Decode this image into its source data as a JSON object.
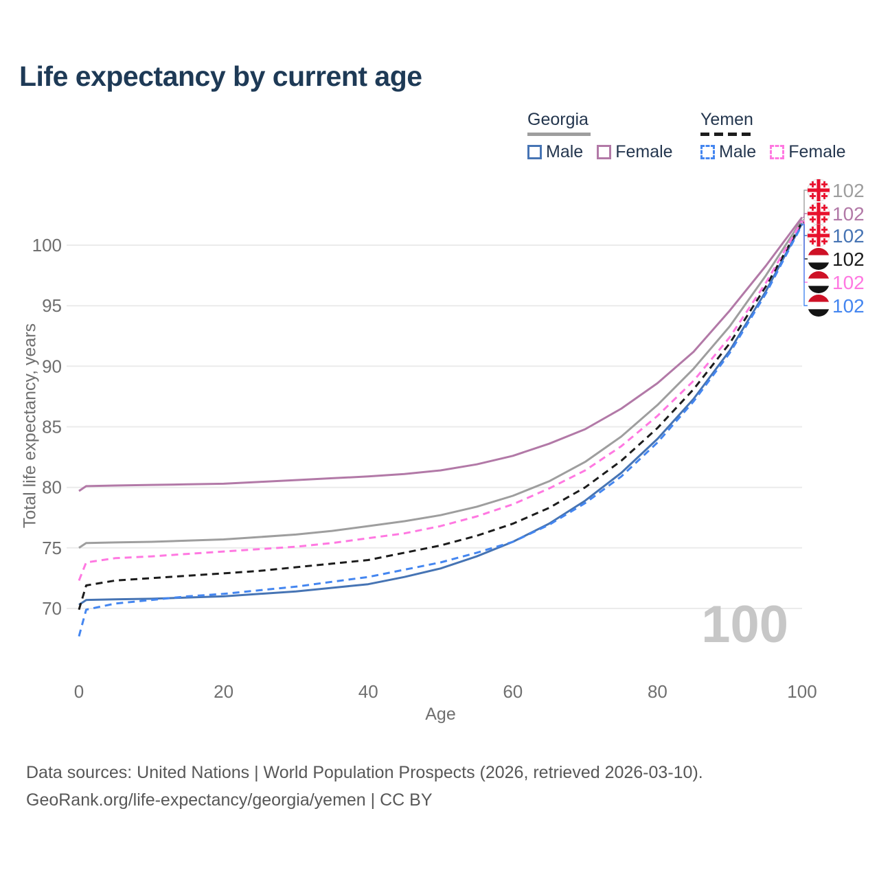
{
  "title": "Life expectancy by current age",
  "watermark": "100",
  "footer": {
    "line1": "Data sources: United Nations | World Population Prospects (2026, retrieved 2026-03-10).",
    "line2": "GeoRank.org/life-expectancy/georgia/yemen | CC BY"
  },
  "legend": {
    "groups": [
      {
        "country": "Georgia",
        "style": "solid",
        "color": "#9e9e9e",
        "items": [
          {
            "label": "Male",
            "color": "#4674b4",
            "dash": false
          },
          {
            "label": "Female",
            "color": "#b279a7",
            "dash": false
          }
        ]
      },
      {
        "country": "Yemen",
        "style": "dashed",
        "color": "#1c1c1c",
        "items": [
          {
            "label": "Male",
            "color": "#4486f0",
            "dash": true
          },
          {
            "label": "Female",
            "color": "#ff78e1",
            "dash": true
          }
        ]
      }
    ]
  },
  "chart_data": {
    "type": "line",
    "title": "Life expectancy by current age",
    "xlabel": "Age",
    "ylabel": "Total life expectancy, years",
    "xlim": [
      0,
      100
    ],
    "ylim": [
      67,
      103
    ],
    "xticks": [
      0,
      20,
      40,
      60,
      80,
      100
    ],
    "yticks": [
      70,
      75,
      80,
      85,
      90,
      95,
      100
    ],
    "grid": "horizontal",
    "legend_position": "top-right",
    "current_age_indicator": "100",
    "x": [
      0,
      1,
      5,
      10,
      15,
      20,
      25,
      30,
      35,
      40,
      45,
      50,
      55,
      60,
      65,
      70,
      75,
      80,
      85,
      90,
      95,
      100
    ],
    "series": [
      {
        "id": "georgia-total",
        "name": "Georgia",
        "country": "Georgia",
        "sex": "Both",
        "color": "#9e9e9e",
        "dash": false,
        "end_label": "102",
        "flag": "georgia",
        "values": [
          75.0,
          75.4,
          75.45,
          75.5,
          75.6,
          75.7,
          75.9,
          76.1,
          76.4,
          76.8,
          77.2,
          77.7,
          78.4,
          79.3,
          80.5,
          82.1,
          84.2,
          86.8,
          89.8,
          93.3,
          97.5,
          102.1
        ]
      },
      {
        "id": "georgia-female",
        "name": "Georgia Female",
        "country": "Georgia",
        "sex": "Female",
        "color": "#b279a7",
        "dash": false,
        "end_label": "102",
        "flag": "georgia",
        "values": [
          79.7,
          80.1,
          80.15,
          80.2,
          80.25,
          80.3,
          80.45,
          80.6,
          80.75,
          80.9,
          81.1,
          81.4,
          81.9,
          82.6,
          83.6,
          84.8,
          86.5,
          88.6,
          91.2,
          94.6,
          98.3,
          102.3
        ]
      },
      {
        "id": "georgia-male",
        "name": "Georgia Male",
        "country": "Georgia",
        "sex": "Male",
        "color": "#4674b4",
        "dash": false,
        "end_label": "102",
        "flag": "georgia",
        "values": [
          70.3,
          70.7,
          70.75,
          70.8,
          70.9,
          71.0,
          71.2,
          71.4,
          71.7,
          72.0,
          72.6,
          73.3,
          74.3,
          75.5,
          77.0,
          78.9,
          81.2,
          84.0,
          87.3,
          91.3,
          96.2,
          101.8
        ]
      },
      {
        "id": "yemen-total",
        "name": "Yemen",
        "country": "Yemen",
        "sex": "Both",
        "color": "#1c1c1c",
        "dash": true,
        "end_label": "102",
        "flag": "yemen",
        "values": [
          69.9,
          71.9,
          72.3,
          72.5,
          72.7,
          72.9,
          73.1,
          73.4,
          73.7,
          74.0,
          74.6,
          75.2,
          76.0,
          77.0,
          78.3,
          80.0,
          82.2,
          84.9,
          88.1,
          91.9,
          96.6,
          101.9
        ]
      },
      {
        "id": "yemen-female",
        "name": "Yemen Female",
        "country": "Yemen",
        "sex": "Female",
        "color": "#ff78e1",
        "dash": true,
        "end_label": "102",
        "flag": "yemen",
        "values": [
          72.3,
          73.8,
          74.15,
          74.3,
          74.5,
          74.7,
          74.9,
          75.1,
          75.4,
          75.8,
          76.2,
          76.8,
          77.6,
          78.6,
          79.9,
          81.4,
          83.4,
          85.9,
          88.8,
          92.4,
          96.9,
          102.0
        ]
      },
      {
        "id": "yemen-male",
        "name": "Yemen Male",
        "country": "Yemen",
        "sex": "Male",
        "color": "#4486f0",
        "dash": true,
        "end_label": "102",
        "flag": "yemen",
        "values": [
          67.7,
          69.9,
          70.4,
          70.7,
          71.0,
          71.2,
          71.5,
          71.8,
          72.2,
          72.6,
          73.2,
          73.8,
          74.6,
          75.5,
          76.9,
          78.7,
          80.9,
          83.7,
          87.1,
          91.1,
          96.0,
          101.7
        ]
      }
    ],
    "flag_colors": {
      "georgia_red": "#e8112d",
      "yemen_red": "#ce1126",
      "yemen_black": "#141414"
    }
  }
}
